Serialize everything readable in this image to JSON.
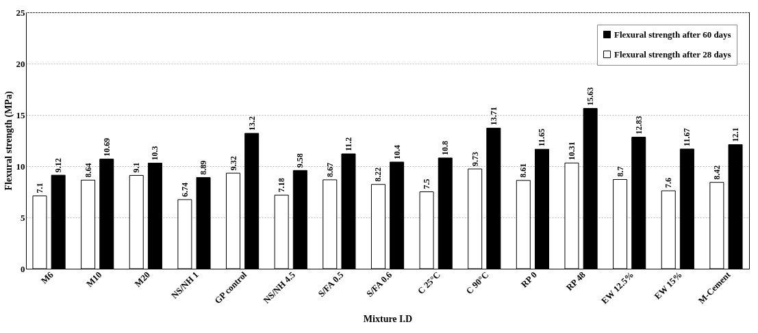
{
  "chart_data": {
    "type": "bar",
    "xlabel": "Mixture I.D",
    "ylabel": "Flexural strength (MPa)",
    "categories": [
      "M6",
      "M10",
      "M20",
      "NS/NH 1",
      "GP control",
      "NS/NH 4.5",
      "S/FA 0.5",
      "S/FA 0.6",
      "C 25°C",
      "C 90°C",
      "RP 0",
      "RP 48",
      "EW 12.5%",
      "EW 15%",
      "M-Cement"
    ],
    "series": [
      {
        "name": "Flexural strength after 28 days",
        "color": "#ffffff",
        "values": [
          7.1,
          8.64,
          9.1,
          6.74,
          9.32,
          7.18,
          8.67,
          8.22,
          7.5,
          9.73,
          8.61,
          10.31,
          8.7,
          7.6,
          8.42
        ]
      },
      {
        "name": "Flexural strength after 60 days",
        "color": "#000000",
        "values": [
          9.12,
          10.69,
          10.3,
          8.89,
          13.2,
          9.58,
          11.2,
          10.4,
          10.8,
          13.71,
          11.65,
          15.63,
          12.83,
          11.67,
          12.1
        ]
      }
    ],
    "ylim": [
      0,
      25
    ],
    "yticks": [
      0,
      5,
      10,
      15,
      20,
      25
    ],
    "grid": "y",
    "legend": "top right",
    "data_labels": true
  }
}
